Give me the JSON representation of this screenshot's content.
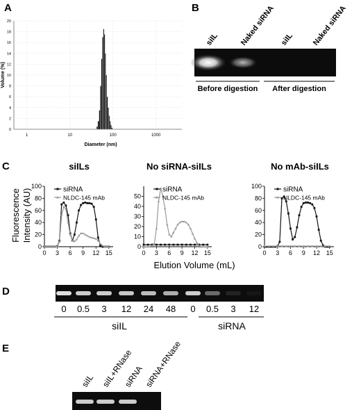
{
  "panels": {
    "A": {
      "letter": "A",
      "chart_data": {
        "type": "bar",
        "xlabel": "Diameter (nm)",
        "ylabel": "Volume (%)",
        "xscale": "log",
        "xlim": [
          0.5,
          4000
        ],
        "ylim": [
          0,
          20
        ],
        "xticks": [
          "1",
          "10",
          "100",
          "1000"
        ],
        "yticks": [
          "0",
          "2",
          "4",
          "6",
          "8",
          "10",
          "12",
          "14",
          "16",
          "18",
          "20"
        ],
        "x": [
          43,
          46,
          49,
          52,
          55,
          58,
          61,
          64,
          67,
          70,
          74,
          78,
          82,
          86,
          90,
          95
        ],
        "values": [
          0.5,
          1.5,
          3.5,
          8,
          13,
          17,
          18.5,
          17.5,
          14,
          10,
          6,
          4,
          2.5,
          1.5,
          0.8,
          0.3
        ]
      }
    },
    "B": {
      "letter": "B",
      "lanes": [
        "siIL",
        "Naked siRNA",
        "siIL",
        "Naked siRNA"
      ],
      "lane_intensity": [
        1.0,
        0.45,
        0,
        0
      ],
      "groups": [
        "Before digestion",
        "After digestion"
      ]
    },
    "C": {
      "letter": "C",
      "ylabel_line1": "Fluorescence",
      "ylabel_line2": "Intensity (AU)",
      "xlabel": "Elution Volume (mL)",
      "colors": {
        "siRNA": "#111111",
        "mab": "#999999"
      },
      "chart_data": [
        {
          "type": "line",
          "title": "siILs",
          "ylim": [
            0,
            100
          ],
          "yticks": [
            "0",
            "20",
            "40",
            "60",
            "80",
            "100"
          ],
          "xlim": [
            0,
            16
          ],
          "xticks": [
            "0",
            "3",
            "6",
            "9",
            "12",
            "15"
          ],
          "series": [
            {
              "name": "siRNA",
              "x": [
                0,
                0.5,
                1,
                1.5,
                2,
                2.5,
                3,
                3.5,
                4,
                4.5,
                5,
                5.5,
                6,
                6.5,
                7,
                7.5,
                8,
                8.5,
                9,
                9.5,
                10,
                10.5,
                11,
                11.5,
                12,
                12.5,
                13,
                13.5,
                14,
                14.5,
                15
              ],
              "values": [
                0,
                0,
                0,
                0,
                0,
                0,
                1,
                10,
                70,
                73,
                68,
                52,
                22,
                10,
                20,
                40,
                60,
                69,
                72,
                73,
                72,
                72,
                71,
                66,
                45,
                15,
                2,
                0,
                0,
                0,
                0
              ]
            },
            {
              "name": "NLDC-145 mAb",
              "x": [
                0,
                0.5,
                1,
                1.5,
                2,
                2.5,
                3,
                3.5,
                4,
                4.5,
                5,
                5.5,
                6,
                6.5,
                7,
                7.5,
                8,
                8.5,
                9,
                9.5,
                10,
                10.5,
                11,
                11.5,
                12,
                12.5,
                13,
                13.5,
                14,
                14.5,
                15
              ],
              "values": [
                0,
                0,
                0,
                0,
                0,
                0,
                1,
                8,
                52,
                66,
                62,
                40,
                20,
                10,
                9,
                12,
                18,
                22,
                22,
                20,
                18,
                16,
                15,
                14,
                13,
                10,
                5,
                2,
                0,
                0,
                0
              ]
            }
          ]
        },
        {
          "type": "line",
          "title": "No siRNA-siILs",
          "ylim": [
            0,
            60
          ],
          "yticks": [
            "0",
            "10",
            "20",
            "30",
            "40",
            "50"
          ],
          "xlim": [
            0,
            16
          ],
          "xticks": [
            "0",
            "3",
            "6",
            "9",
            "12",
            "15"
          ],
          "series": [
            {
              "name": "siRNA",
              "x": [
                0,
                1,
                2,
                3,
                4,
                5,
                6,
                7,
                8,
                9,
                10,
                11,
                12,
                13,
                14,
                15
              ],
              "values": [
                2,
                2,
                2,
                2,
                2,
                2,
                2,
                2,
                2,
                2,
                2,
                2,
                2,
                2,
                2,
                2
              ]
            },
            {
              "name": "NLDC-145 mAb",
              "x": [
                0,
                0.5,
                1,
                1.5,
                2,
                2.5,
                3,
                3.5,
                4,
                4.5,
                5,
                5.5,
                6,
                6.5,
                7,
                7.5,
                8,
                8.5,
                9,
                9.5,
                10,
                10.5,
                11,
                11.5,
                12,
                12.5,
                13,
                13.5,
                14,
                14.5,
                15
              ],
              "values": [
                0,
                0,
                0,
                0,
                1,
                3,
                18,
                45,
                58,
                50,
                38,
                22,
                12,
                10,
                14,
                18,
                22,
                24,
                25,
                25,
                24,
                22,
                18,
                13,
                8,
                4,
                1,
                0,
                0,
                0,
                0
              ]
            }
          ]
        },
        {
          "type": "line",
          "title": "No mAb-siILs",
          "ylim": [
            0,
            100
          ],
          "yticks": [
            "0",
            "20",
            "40",
            "60",
            "80",
            "100"
          ],
          "xlim": [
            0,
            16
          ],
          "xticks": [
            "0",
            "3",
            "6",
            "9",
            "12",
            "15"
          ],
          "series": [
            {
              "name": "siRNA",
              "x": [
                0,
                0.5,
                1,
                1.5,
                2,
                2.5,
                3,
                3.5,
                4,
                4.5,
                5,
                5.5,
                6,
                6.5,
                7,
                7.5,
                8,
                8.5,
                9,
                9.5,
                10,
                10.5,
                11,
                11.5,
                12,
                12.5,
                13,
                13.5,
                14,
                14.5,
                15
              ],
              "values": [
                0,
                0,
                0,
                0,
                0,
                0,
                1,
                8,
                80,
                83,
                75,
                55,
                30,
                12,
                16,
                32,
                52,
                66,
                72,
                73,
                73,
                72,
                70,
                64,
                50,
                28,
                10,
                2,
                0,
                0,
                0
              ]
            },
            {
              "name": "NLDC-145 mAb",
              "x": [
                0,
                1,
                2,
                3,
                4,
                5,
                6,
                7,
                8,
                9,
                10,
                11,
                12,
                13,
                14,
                15
              ],
              "values": [
                1,
                1,
                1,
                1,
                1,
                1,
                1,
                1,
                1,
                1,
                1,
                1,
                1,
                1,
                1,
                1
              ]
            }
          ]
        }
      ]
    },
    "D": {
      "letter": "D",
      "lanes": [
        "0",
        "0.5",
        "3",
        "12",
        "24",
        "48",
        "0",
        "0.5",
        "3",
        "12"
      ],
      "lane_intensity": [
        0.95,
        0.9,
        0.9,
        0.88,
        0.85,
        0.8,
        0.9,
        0.55,
        0.15,
        0.02
      ],
      "groups": [
        "siIL",
        "siRNA"
      ]
    },
    "E": {
      "letter": "E",
      "lanes": [
        "siIL",
        "siIL+RNase",
        "siRNA",
        "siRNA+RNase"
      ],
      "lane_intensity": [
        0.9,
        0.9,
        0.9,
        0.0
      ]
    }
  }
}
